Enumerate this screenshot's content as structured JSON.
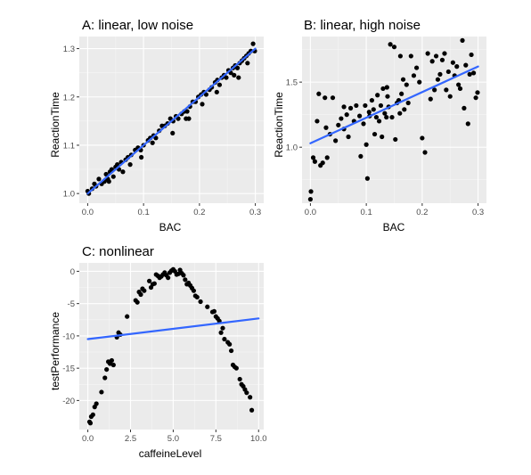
{
  "colors": {
    "panel_background": "#ebebeb",
    "grid_major": "#ffffff",
    "grid_minor": "#f5f5f5",
    "points": "#000000",
    "fit_line": "#3366ff",
    "tick_text": "#4d4d4d"
  },
  "chart_data": [
    {
      "type": "scatter",
      "title": "A: linear, low noise",
      "xlabel": "BAC",
      "ylabel": "ReactionTime",
      "xlim": [
        -0.015,
        0.315
      ],
      "ylim": [
        0.98,
        1.325
      ],
      "xticks": [
        0,
        0.1,
        0.2,
        0.3
      ],
      "xtick_labels": [
        "0.0",
        "0.1",
        "0.2",
        "0.3"
      ],
      "yticks": [
        1.0,
        1.1,
        1.2,
        1.3
      ],
      "ytick_labels": [
        "1.0",
        "1.1",
        "1.2",
        "1.3"
      ],
      "grid": true,
      "fit_line": {
        "x": [
          0.0,
          0.3
        ],
        "y": [
          1.0,
          1.3
        ]
      },
      "points": [
        [
          0.0,
          1.005
        ],
        [
          0.002,
          1.0
        ],
        [
          0.008,
          1.01
        ],
        [
          0.012,
          1.02
        ],
        [
          0.015,
          1.015
        ],
        [
          0.02,
          1.03
        ],
        [
          0.025,
          1.02
        ],
        [
          0.03,
          1.025
        ],
        [
          0.033,
          1.04
        ],
        [
          0.036,
          1.03
        ],
        [
          0.04,
          1.045
        ],
        [
          0.043,
          1.05
        ],
        [
          0.046,
          1.035
        ],
        [
          0.05,
          1.055
        ],
        [
          0.053,
          1.06
        ],
        [
          0.056,
          1.05
        ],
        [
          0.06,
          1.065
        ],
        [
          0.063,
          1.045
        ],
        [
          0.068,
          1.07
        ],
        [
          0.072,
          1.075
        ],
        [
          0.078,
          1.08
        ],
        [
          0.085,
          1.09
        ],
        [
          0.09,
          1.095
        ],
        [
          0.095,
          1.09
        ],
        [
          0.1,
          1.1
        ],
        [
          0.108,
          1.11
        ],
        [
          0.112,
          1.115
        ],
        [
          0.118,
          1.12
        ],
        [
          0.122,
          1.115
        ],
        [
          0.128,
          1.13
        ],
        [
          0.133,
          1.14
        ],
        [
          0.138,
          1.14
        ],
        [
          0.143,
          1.145
        ],
        [
          0.148,
          1.155
        ],
        [
          0.153,
          1.15
        ],
        [
          0.158,
          1.16
        ],
        [
          0.162,
          1.155
        ],
        [
          0.168,
          1.165
        ],
        [
          0.173,
          1.17
        ],
        [
          0.178,
          1.17
        ],
        [
          0.183,
          1.18
        ],
        [
          0.188,
          1.19
        ],
        [
          0.193,
          1.19
        ],
        [
          0.198,
          1.2
        ],
        [
          0.203,
          1.205
        ],
        [
          0.208,
          1.21
        ],
        [
          0.212,
          1.205
        ],
        [
          0.218,
          1.215
        ],
        [
          0.222,
          1.22
        ],
        [
          0.228,
          1.23
        ],
        [
          0.232,
          1.235
        ],
        [
          0.236,
          1.225
        ],
        [
          0.24,
          1.24
        ],
        [
          0.244,
          1.245
        ],
        [
          0.248,
          1.24
        ],
        [
          0.252,
          1.255
        ],
        [
          0.256,
          1.25
        ],
        [
          0.26,
          1.26
        ],
        [
          0.264,
          1.265
        ],
        [
          0.268,
          1.26
        ],
        [
          0.272,
          1.27
        ],
        [
          0.276,
          1.275
        ],
        [
          0.28,
          1.28
        ],
        [
          0.284,
          1.285
        ],
        [
          0.288,
          1.29
        ],
        [
          0.292,
          1.295
        ],
        [
          0.296,
          1.31
        ],
        [
          0.299,
          1.295
        ],
        [
          0.27,
          1.24
        ],
        [
          0.262,
          1.245
        ],
        [
          0.231,
          1.21
        ],
        [
          0.205,
          1.185
        ],
        [
          0.176,
          1.155
        ],
        [
          0.152,
          1.125
        ],
        [
          0.116,
          1.105
        ],
        [
          0.096,
          1.075
        ],
        [
          0.076,
          1.06
        ],
        [
          0.038,
          1.025
        ],
        [
          0.181,
          1.155
        ],
        [
          0.286,
          1.27
        ]
      ]
    },
    {
      "type": "scatter",
      "title": "B: linear, high noise",
      "xlabel": "BAC",
      "ylabel": "ReactionTime",
      "xlim": [
        -0.015,
        0.315
      ],
      "ylim": [
        0.57,
        1.85
      ],
      "xticks": [
        0,
        0.1,
        0.2,
        0.3
      ],
      "xtick_labels": [
        "0.0",
        "0.1",
        "0.2",
        "0.3"
      ],
      "yticks": [
        1.0,
        1.5
      ],
      "ytick_labels": [
        "1.0",
        "1.5"
      ],
      "grid": true,
      "fit_line": {
        "x": [
          0.0,
          0.3
        ],
        "y": [
          1.03,
          1.62
        ]
      },
      "points": [
        [
          0.0,
          0.6
        ],
        [
          0.001,
          0.66
        ],
        [
          0.005,
          0.92
        ],
        [
          0.008,
          0.89
        ],
        [
          0.012,
          1.2
        ],
        [
          0.015,
          1.41
        ],
        [
          0.018,
          0.86
        ],
        [
          0.022,
          0.88
        ],
        [
          0.026,
          1.38
        ],
        [
          0.028,
          1.15
        ],
        [
          0.03,
          0.92
        ],
        [
          0.035,
          1.1
        ],
        [
          0.04,
          1.38
        ],
        [
          0.045,
          1.05
        ],
        [
          0.05,
          1.17
        ],
        [
          0.055,
          1.22
        ],
        [
          0.06,
          1.14
        ],
        [
          0.065,
          1.25
        ],
        [
          0.068,
          1.08
        ],
        [
          0.072,
          1.3
        ],
        [
          0.078,
          1.2
        ],
        [
          0.082,
          1.32
        ],
        [
          0.088,
          1.24
        ],
        [
          0.09,
          0.93
        ],
        [
          0.095,
          1.18
        ],
        [
          0.098,
          1.32
        ],
        [
          0.1,
          1.02
        ],
        [
          0.102,
          0.76
        ],
        [
          0.105,
          1.27
        ],
        [
          0.11,
          1.36
        ],
        [
          0.113,
          1.29
        ],
        [
          0.115,
          1.1
        ],
        [
          0.118,
          1.23
        ],
        [
          0.12,
          1.4
        ],
        [
          0.123,
          1.2
        ],
        [
          0.126,
          1.32
        ],
        [
          0.128,
          1.08
        ],
        [
          0.13,
          1.45
        ],
        [
          0.133,
          1.26
        ],
        [
          0.136,
          1.23
        ],
        [
          0.138,
          1.39
        ],
        [
          0.14,
          1.31
        ],
        [
          0.143,
          1.79
        ],
        [
          0.146,
          1.23
        ],
        [
          0.15,
          1.77
        ],
        [
          0.152,
          1.06
        ],
        [
          0.155,
          1.34
        ],
        [
          0.158,
          1.36
        ],
        [
          0.16,
          1.26
        ],
        [
          0.163,
          1.41
        ],
        [
          0.166,
          1.52
        ],
        [
          0.168,
          1.29
        ],
        [
          0.172,
          1.48
        ],
        [
          0.175,
          1.34
        ],
        [
          0.18,
          1.7
        ],
        [
          0.185,
          1.55
        ],
        [
          0.19,
          1.61
        ],
        [
          0.195,
          1.5
        ],
        [
          0.2,
          1.07
        ],
        [
          0.205,
          0.96
        ],
        [
          0.21,
          1.72
        ],
        [
          0.215,
          1.37
        ],
        [
          0.218,
          1.66
        ],
        [
          0.222,
          1.44
        ],
        [
          0.225,
          1.7
        ],
        [
          0.228,
          1.52
        ],
        [
          0.232,
          1.56
        ],
        [
          0.236,
          1.67
        ],
        [
          0.24,
          1.72
        ],
        [
          0.243,
          1.44
        ],
        [
          0.247,
          1.58
        ],
        [
          0.25,
          1.39
        ],
        [
          0.255,
          1.65
        ],
        [
          0.258,
          1.55
        ],
        [
          0.262,
          1.62
        ],
        [
          0.265,
          1.48
        ],
        [
          0.268,
          1.45
        ],
        [
          0.272,
          1.82
        ],
        [
          0.275,
          1.3
        ],
        [
          0.278,
          1.63
        ],
        [
          0.282,
          1.18
        ],
        [
          0.285,
          1.56
        ],
        [
          0.288,
          1.71
        ],
        [
          0.292,
          1.57
        ],
        [
          0.296,
          1.38
        ],
        [
          0.299,
          1.42
        ],
        [
          0.06,
          1.31
        ],
        [
          0.137,
          1.46
        ],
        [
          0.106,
          1.24
        ],
        [
          0.161,
          1.7
        ]
      ]
    },
    {
      "type": "scatter",
      "title": "C: nonlinear",
      "xlabel": "caffeineLevel",
      "ylabel": "testPerformance",
      "xlim": [
        -0.5,
        10.3
      ],
      "ylim": [
        -24.5,
        1.3
      ],
      "xticks": [
        0,
        2.5,
        5,
        7.5,
        10
      ],
      "xtick_labels": [
        "0.0",
        "2.5",
        "5.0",
        "7.5",
        "10.0"
      ],
      "yticks": [
        0,
        -5,
        -10,
        -15,
        -20
      ],
      "ytick_labels": [
        "0",
        "-5",
        "-10",
        "-15",
        "-20"
      ],
      "grid": true,
      "fit_line": {
        "x": [
          0.0,
          10.0
        ],
        "y": [
          -10.5,
          -7.3
        ]
      },
      "points": [
        [
          0.1,
          -23.3
        ],
        [
          0.15,
          -23.5
        ],
        [
          0.2,
          -22.5
        ],
        [
          0.3,
          -22.2
        ],
        [
          0.4,
          -21.0
        ],
        [
          0.5,
          -20.5
        ],
        [
          0.8,
          -18.7
        ],
        [
          1.0,
          -16.5
        ],
        [
          1.1,
          -15.2
        ],
        [
          1.2,
          -14.0
        ],
        [
          1.3,
          -14.3
        ],
        [
          1.4,
          -13.8
        ],
        [
          1.5,
          -14.5
        ],
        [
          1.7,
          -10.2
        ],
        [
          1.8,
          -9.5
        ],
        [
          1.9,
          -9.8
        ],
        [
          2.3,
          -7.0
        ],
        [
          2.8,
          -4.5
        ],
        [
          2.9,
          -4.8
        ],
        [
          3.0,
          -3.2
        ],
        [
          3.1,
          -3.6
        ],
        [
          3.2,
          -2.7
        ],
        [
          3.3,
          -3.0
        ],
        [
          3.6,
          -1.5
        ],
        [
          3.7,
          -2.5
        ],
        [
          3.8,
          -2.0
        ],
        [
          3.9,
          -1.9
        ],
        [
          4.0,
          -0.5
        ],
        [
          4.1,
          -0.7
        ],
        [
          4.2,
          -1.0
        ],
        [
          4.3,
          -0.8
        ],
        [
          4.4,
          -0.5
        ],
        [
          4.5,
          -0.2
        ],
        [
          4.6,
          -0.6
        ],
        [
          4.7,
          -1.0
        ],
        [
          4.8,
          -0.2
        ],
        [
          4.9,
          0.1
        ],
        [
          5.0,
          0.3
        ],
        [
          5.1,
          0.0
        ],
        [
          5.2,
          -0.5
        ],
        [
          5.3,
          -0.4
        ],
        [
          5.4,
          0.2
        ],
        [
          5.5,
          -0.3
        ],
        [
          5.6,
          -0.6
        ],
        [
          5.7,
          -1.3
        ],
        [
          5.8,
          -2.0
        ],
        [
          5.9,
          -1.8
        ],
        [
          6.0,
          -2.2
        ],
        [
          6.1,
          -2.6
        ],
        [
          6.2,
          -3.0
        ],
        [
          6.3,
          -3.8
        ],
        [
          6.4,
          -4.0
        ],
        [
          6.6,
          -4.7
        ],
        [
          7.0,
          -5.5
        ],
        [
          7.3,
          -6.3
        ],
        [
          7.4,
          -6.2
        ],
        [
          7.5,
          -7.0
        ],
        [
          7.6,
          -7.3
        ],
        [
          7.7,
          -7.7
        ],
        [
          7.8,
          -9.5
        ],
        [
          7.9,
          -8.8
        ],
        [
          8.0,
          -10.5
        ],
        [
          8.2,
          -11.0
        ],
        [
          8.3,
          -11.3
        ],
        [
          8.4,
          -12.3
        ],
        [
          8.5,
          -14.5
        ],
        [
          8.6,
          -14.8
        ],
        [
          8.7,
          -15.0
        ],
        [
          8.9,
          -16.7
        ],
        [
          9.0,
          -17.5
        ],
        [
          9.1,
          -17.8
        ],
        [
          9.2,
          -18.3
        ],
        [
          9.3,
          -18.8
        ],
        [
          9.5,
          -19.5
        ],
        [
          9.6,
          -21.5
        ]
      ]
    }
  ]
}
